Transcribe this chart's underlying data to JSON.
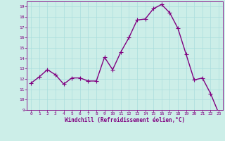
{
  "x": [
    0,
    1,
    2,
    3,
    4,
    5,
    6,
    7,
    8,
    9,
    10,
    11,
    12,
    13,
    14,
    15,
    16,
    17,
    18,
    19,
    20,
    21,
    22,
    23
  ],
  "y": [
    11.6,
    12.2,
    12.9,
    12.4,
    11.5,
    12.1,
    12.1,
    11.8,
    11.8,
    14.1,
    12.9,
    14.6,
    16.0,
    17.7,
    17.8,
    18.8,
    19.2,
    18.4,
    16.9,
    14.4,
    11.9,
    12.1,
    10.6,
    8.7
  ],
  "line_color": "#800080",
  "marker": "+",
  "marker_size": 4,
  "bg_color": "#cceee8",
  "grid_color": "#aadddd",
  "xlabel": "Windchill (Refroidissement éolien,°C)",
  "ylim": [
    9,
    19.5
  ],
  "xlim": [
    -0.5,
    23.5
  ],
  "yticks": [
    9,
    10,
    11,
    12,
    13,
    14,
    15,
    16,
    17,
    18,
    19
  ],
  "xticks": [
    0,
    1,
    2,
    3,
    4,
    5,
    6,
    7,
    8,
    9,
    10,
    11,
    12,
    13,
    14,
    15,
    16,
    17,
    18,
    19,
    20,
    21,
    22,
    23
  ],
  "tick_color": "#800080",
  "label_color": "#800080",
  "axis_color": "#800080",
  "line_width": 1.0,
  "spine_color": "#800080"
}
